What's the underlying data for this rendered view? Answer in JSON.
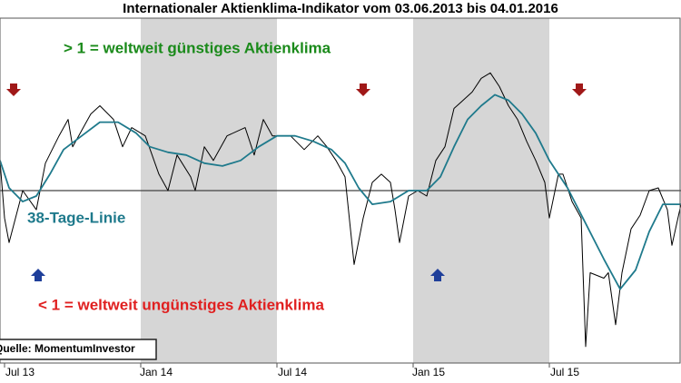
{
  "chart_data": {
    "type": "line",
    "title": "Internationaler Aktienklima-Indikator vom 03.06.2013 bis 04.01.2016",
    "annotations": {
      "upper": "> 1 = weltweit günstiges Aktienklima",
      "lower": "< 1 = weltweit ungünstiges Aktienklima",
      "source": "Quelle: MomentumInvestor"
    },
    "xlim": [
      0.8,
      30.8
    ],
    "ylim": [
      0.37,
      1.63
    ],
    "xticks": [
      {
        "value": 1,
        "label": "Jul 13"
      },
      {
        "value": 7,
        "label": "Jan 14"
      },
      {
        "value": 13,
        "label": "Jul 14"
      },
      {
        "value": 19,
        "label": "Jan 15"
      },
      {
        "value": 25,
        "label": "Jul 15"
      }
    ],
    "reference": 1,
    "shaded": [
      [
        7,
        13
      ],
      [
        19,
        25
      ]
    ],
    "series": [
      {
        "color": "#000000",
        "x": [
          0.8,
          1.0,
          1.2,
          1.8,
          2.4,
          2.8,
          3.4,
          3.8,
          4.0,
          4.8,
          5.2,
          5.8,
          6.2,
          6.6,
          7.2,
          7.8,
          8.2,
          8.6,
          9.2,
          9.4,
          9.8,
          10.2,
          10.8,
          11.6,
          12.0,
          12.4,
          12.8,
          13.6,
          14.2,
          14.8,
          15.2,
          15.6,
          16.0,
          16.4,
          16.8,
          17.2,
          17.6,
          18.0,
          18.2,
          18.4,
          18.8,
          19.2,
          19.6,
          20.0,
          20.4,
          20.8,
          21.2,
          21.6,
          22.0,
          22.4,
          22.8,
          23.2,
          23.6,
          24.0,
          24.4,
          24.8,
          25.0,
          25.4,
          25.6,
          26.0,
          26.4,
          26.6,
          26.8,
          27.4,
          27.6,
          27.92,
          28.2,
          28.6,
          29.0,
          29.4,
          29.8,
          30.2,
          30.4,
          30.8
        ],
        "values": [
          1.11,
          0.9,
          0.81,
          1.0,
          0.93,
          1.1,
          1.2,
          1.26,
          1.16,
          1.28,
          1.31,
          1.26,
          1.16,
          1.23,
          1.2,
          1.06,
          1.0,
          1.13,
          1.05,
          1.0,
          1.16,
          1.11,
          1.2,
          1.23,
          1.13,
          1.26,
          1.2,
          1.2,
          1.15,
          1.2,
          1.16,
          1.11,
          1.05,
          0.73,
          0.9,
          1.03,
          1.06,
          1.03,
          0.93,
          0.81,
          0.98,
          1.0,
          0.98,
          1.11,
          1.16,
          1.3,
          1.33,
          1.36,
          1.41,
          1.43,
          1.38,
          1.31,
          1.26,
          1.18,
          1.11,
          1.03,
          0.9,
          1.06,
          1.06,
          0.96,
          0.9,
          0.43,
          0.7,
          0.68,
          0.7,
          0.51,
          0.7,
          0.86,
          0.91,
          1.0,
          1.01,
          0.93,
          0.8,
          0.95
        ]
      },
      {
        "name": "38-Tage-Linie",
        "color": "#1f7a8c",
        "x": [
          0.8,
          1.2,
          1.8,
          2.4,
          3.0,
          3.6,
          4.4,
          5.2,
          6.0,
          6.8,
          7.4,
          8.2,
          9.0,
          9.8,
          10.6,
          11.4,
          12.2,
          13.0,
          13.8,
          14.6,
          15.4,
          16.0,
          16.6,
          17.2,
          18.0,
          18.8,
          19.6,
          20.2,
          20.8,
          21.4,
          22.0,
          22.6,
          23.2,
          23.8,
          24.4,
          25.0,
          25.8,
          26.6,
          27.4,
          28.12,
          28.8,
          29.4,
          30.0,
          30.8
        ],
        "values": [
          1.11,
          1.01,
          0.96,
          0.98,
          1.06,
          1.15,
          1.2,
          1.25,
          1.25,
          1.21,
          1.16,
          1.14,
          1.13,
          1.1,
          1.09,
          1.11,
          1.16,
          1.2,
          1.2,
          1.18,
          1.15,
          1.1,
          1.01,
          0.95,
          0.96,
          1.0,
          1.0,
          1.05,
          1.16,
          1.26,
          1.31,
          1.35,
          1.33,
          1.28,
          1.21,
          1.11,
          1.01,
          0.88,
          0.75,
          0.64,
          0.71,
          0.85,
          0.95,
          0.95
        ]
      }
    ]
  }
}
